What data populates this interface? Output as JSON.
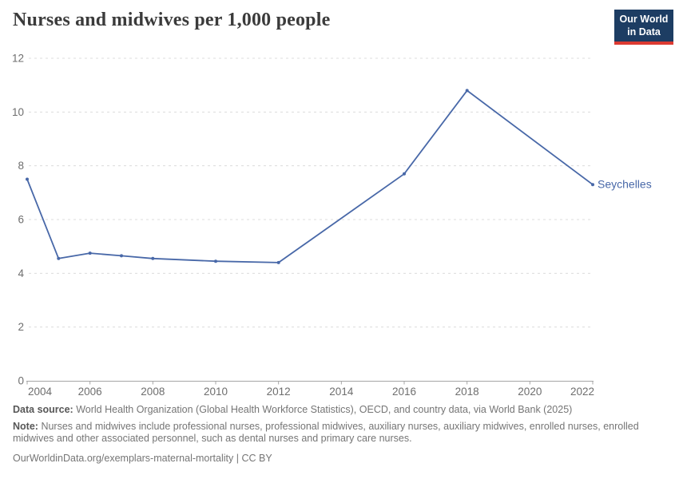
{
  "header": {
    "title": "Nurses and midwives per 1,000 people",
    "logo": {
      "line1": "Our World",
      "line2": "in Data"
    }
  },
  "chart_data": {
    "type": "line",
    "title": "Nurses and midwives per 1,000 people",
    "xlim": [
      2004,
      2022
    ],
    "ylim": [
      0,
      12
    ],
    "x_ticks": [
      2004,
      2006,
      2008,
      2010,
      2012,
      2014,
      2016,
      2018,
      2020,
      2022
    ],
    "y_ticks": [
      0,
      2,
      4,
      6,
      8,
      10,
      12
    ],
    "grid": true,
    "legend_position": "end-of-line",
    "series": [
      {
        "name": "Seychelles",
        "color": "#4868a8",
        "points": [
          [
            2004,
            7.5
          ],
          [
            2005,
            4.55
          ],
          [
            2006,
            4.75
          ],
          [
            2007,
            4.65
          ],
          [
            2008,
            4.55
          ],
          [
            2010,
            4.45
          ],
          [
            2012,
            4.4
          ],
          [
            2016,
            7.7
          ],
          [
            2018,
            10.8
          ],
          [
            2022,
            7.3
          ]
        ]
      }
    ]
  },
  "footer": {
    "data_source_label": "Data source:",
    "data_source": "World Health Organization (Global Health Workforce Statistics), OECD, and country data, via World Bank (2025)",
    "note_label": "Note:",
    "note": "Nurses and midwives include professional nurses, professional midwives, auxiliary nurses, auxiliary midwives, enrolled nurses, enrolled midwives and other associated personnel, such as dental nurses and primary care nurses.",
    "url": "OurWorldinData.org/exemplars-maternal-mortality",
    "separator": " | ",
    "license": "CC BY"
  },
  "colors": {
    "series_blue": "#4868a8",
    "logo_navy": "#1d3d63",
    "logo_red": "#dc3a32",
    "grid_gray": "#dcdcdc",
    "axis_gray": "#a5a5a5",
    "label_gray": "#6e6e6e",
    "footer_gray": "#757575",
    "title_gray": "#3b3b3b"
  }
}
